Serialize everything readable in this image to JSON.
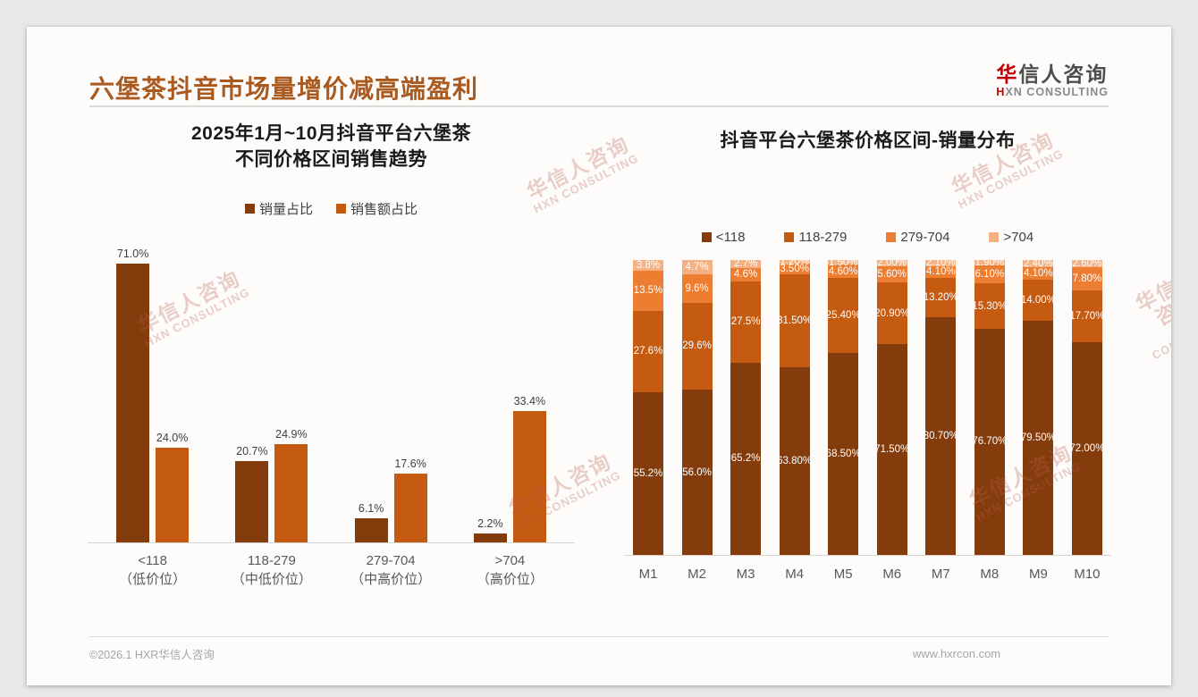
{
  "header": {
    "title": "六堡茶抖音市场量增价减高端盈利",
    "logo_zh_accent": "华",
    "logo_zh_rest": "信人咨询",
    "logo_en_accent": "H",
    "logo_en_rest": "XN CONSULTING"
  },
  "watermark": {
    "line1": "华信人咨询",
    "line2": "HXN CONSULTING"
  },
  "footer": {
    "left": "©2026.1 HXR华信人咨询",
    "right": "www.hxrcon.com"
  },
  "colors": {
    "title_accent": "#aa5a1f",
    "logo_red": "#c00000",
    "band_lt118": "#843c0c",
    "band_118_279": "#c55a11",
    "band_279_704": "#ed7d31",
    "band_gt704": "#f4b183"
  },
  "chart_data": [
    {
      "type": "bar",
      "title": "2025年1月~10月抖音平台六堡茶\n不同价格区间销售趋势",
      "categories": [
        "<118\n（低价位）",
        "118-279\n（中低价位）",
        "279-704\n（中高价位）",
        ">704\n（高价位）"
      ],
      "series": [
        {
          "name": "销量占比",
          "color": "#843c0c",
          "values": [
            71.0,
            20.7,
            6.1,
            2.2
          ],
          "labels": [
            "71.0%",
            "20.7%",
            "6.1%",
            "2.2%"
          ]
        },
        {
          "name": "销售额占比",
          "color": "#c55a11",
          "values": [
            24.0,
            24.9,
            17.6,
            33.4
          ],
          "labels": [
            "24.0%",
            "24.9%",
            "17.6%",
            "33.4%"
          ]
        }
      ],
      "ylim": [
        0,
        75
      ],
      "grid": false,
      "legend_position": "top"
    },
    {
      "type": "stacked-bar",
      "title": "抖音平台六堡茶价格区间-销量分布",
      "categories": [
        "M1",
        "M2",
        "M3",
        "M4",
        "M5",
        "M6",
        "M7",
        "M8",
        "M9",
        "M10"
      ],
      "series": [
        {
          "name": "<118",
          "color": "#843c0c",
          "values": [
            55.2,
            56.0,
            65.2,
            63.8,
            68.5,
            71.5,
            80.7,
            76.7,
            79.5,
            72.0
          ],
          "labels": [
            "55.2%",
            "56.0%",
            "65.2%",
            "63.80%",
            "68.50%",
            "71.50%",
            "80.70%",
            "76.70%",
            "79.50%",
            "72.00%"
          ]
        },
        {
          "name": "118-279",
          "color": "#c55a11",
          "values": [
            27.6,
            29.6,
            27.5,
            31.5,
            25.4,
            20.9,
            13.2,
            15.3,
            14.0,
            17.7
          ],
          "labels": [
            "27.6%",
            "29.6%",
            "27.5%",
            "31.50%",
            "25.40%",
            "20.90%",
            "13.20%",
            "15.30%",
            "14.00%",
            "17.70%"
          ]
        },
        {
          "name": "279-704",
          "color": "#ed7d31",
          "values": [
            13.5,
            9.6,
            4.6,
            3.5,
            4.6,
            5.6,
            4.1,
            6.1,
            4.1,
            7.8
          ],
          "labels": [
            "13.5%",
            "9.6%",
            "4.6%",
            "3.50%",
            "4.60%",
            "5.60%",
            "4.10%",
            "6.10%",
            "4.10%",
            "7.80%"
          ]
        },
        {
          "name": ">704",
          "color": "#f4b183",
          "values": [
            3.8,
            4.7,
            2.7,
            1.2,
            1.5,
            2.0,
            2.1,
            1.9,
            2.4,
            2.6
          ],
          "labels": [
            "3.8%",
            "4.7%",
            "2.7%",
            "1.20%",
            "1.50%",
            "2.00%",
            "2.10%",
            "1.90%",
            "2.40%",
            "2.60%"
          ]
        }
      ],
      "ylim": [
        0,
        100
      ],
      "grid": false,
      "legend_position": "top"
    }
  ]
}
